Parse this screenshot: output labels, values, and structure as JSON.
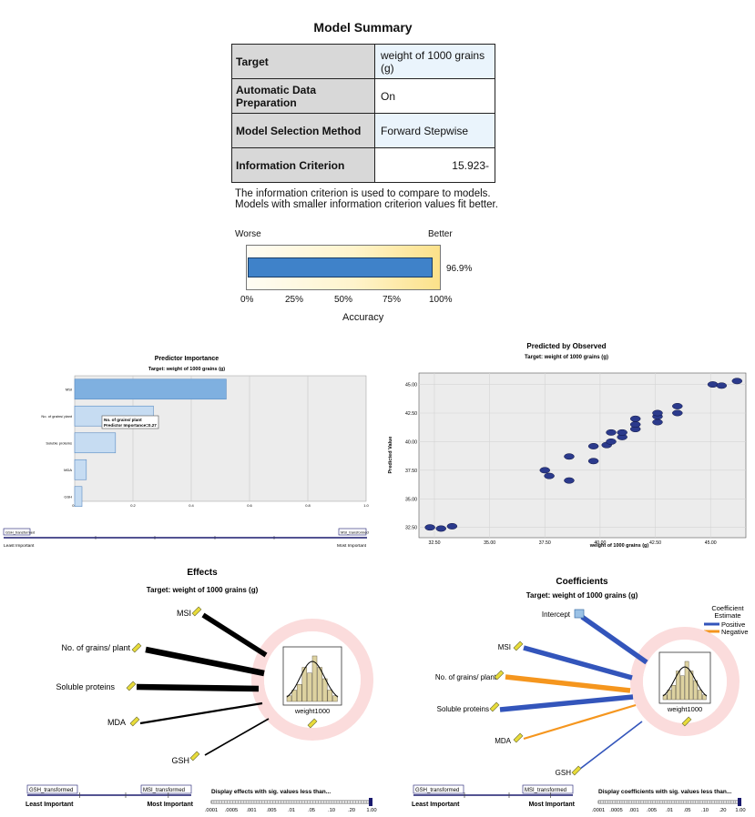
{
  "model_summary": {
    "title": "Model Summary",
    "rows": [
      {
        "key": "Target",
        "value": "weight of 1000 grains (g)"
      },
      {
        "key": "Automatic Data Preparation",
        "value": "On"
      },
      {
        "key": "Model Selection Method",
        "value": "Forward Stepwise"
      },
      {
        "key": "Information Criterion",
        "value": "15.923-"
      }
    ],
    "note_line1": "The information criterion is used to compare to models.",
    "note_line2": "Models with smaller information criterion values fit better.",
    "accuracy": {
      "worse_label": "Worse",
      "better_label": "Better",
      "value": 0.969,
      "value_label": "96.9%",
      "ticks": [
        "0%",
        "25%",
        "50%",
        "75%",
        "100%"
      ],
      "axis_label": "Accuracy",
      "colors": {
        "bar": "#3f82c9",
        "gradient_end": "#fce18a"
      }
    }
  },
  "chart_data": [
    {
      "type": "bar",
      "orientation": "horizontal",
      "title": "Predictor Importance",
      "subtitle": "Target: weight of 1000 grains (g)",
      "categories": [
        "MSI",
        "No. of grains/ plant",
        "Soluble proteins",
        "MDA",
        "GSH"
      ],
      "values": [
        0.52,
        0.27,
        0.14,
        0.04,
        0.025
      ],
      "xlim": [
        0,
        1.0
      ],
      "x_ticks": [
        "0.0",
        "0.2",
        "0.4",
        "0.6",
        "0.8",
        "1.0"
      ],
      "grid": true,
      "tooltip": {
        "line1": "No. of grains/ plant",
        "line2": "Predictor Importance=0.27"
      },
      "slider": {
        "left_tag": "GSH_transformed",
        "right_tag": "MSI_transformed",
        "left_label": "Least Important",
        "right_label": "Most Important"
      },
      "colors": {
        "bar": "#7fb0e0",
        "bar_light": "#c6dcf2",
        "plot_bg": "#ececec"
      }
    },
    {
      "type": "scatter",
      "title": "Predicted by Observed",
      "subtitle": "Target: weight of 1000 grains (g)",
      "xlabel": "weight of 1000 grains (g)",
      "ylabel": "Predicted Value",
      "xlim": [
        31.8,
        46.6
      ],
      "ylim": [
        31.6,
        46.0
      ],
      "x_ticks": [
        "32.50",
        "35.00",
        "37.50",
        "40.00",
        "42.50",
        "45.00"
      ],
      "y_ticks": [
        "32.50",
        "35.00",
        "37.50",
        "40.00",
        "42.50",
        "45.00"
      ],
      "points": [
        [
          32.3,
          32.5
        ],
        [
          32.8,
          32.4
        ],
        [
          33.3,
          32.6
        ],
        [
          37.5,
          37.5
        ],
        [
          37.7,
          37.0
        ],
        [
          38.6,
          36.6
        ],
        [
          38.6,
          38.7
        ],
        [
          39.7,
          38.3
        ],
        [
          39.7,
          39.6
        ],
        [
          40.3,
          39.7
        ],
        [
          40.5,
          40.0
        ],
        [
          40.5,
          40.8
        ],
        [
          41.0,
          40.4
        ],
        [
          41.0,
          40.8
        ],
        [
          41.6,
          41.1
        ],
        [
          41.6,
          41.5
        ],
        [
          41.6,
          42.0
        ],
        [
          42.6,
          41.7
        ],
        [
          42.6,
          42.2
        ],
        [
          42.6,
          42.5
        ],
        [
          43.5,
          42.5
        ],
        [
          43.5,
          43.1
        ],
        [
          45.1,
          45.0
        ],
        [
          45.5,
          44.9
        ],
        [
          46.2,
          45.3
        ]
      ],
      "grid": true,
      "colors": {
        "point": "#2b3a8c",
        "plot_bg": "#ececec"
      }
    },
    {
      "type": "diagram",
      "title": "Effects",
      "subtitle": "Target: weight of 1000 grains (g)",
      "target": "weight1000",
      "inputs": [
        {
          "name": "MSI",
          "weight": 5
        },
        {
          "name": "No. of grains/ plant",
          "weight": 6
        },
        {
          "name": "Soluble proteins",
          "weight": 6
        },
        {
          "name": "MDA",
          "weight": 2
        },
        {
          "name": "GSH",
          "weight": 1.5
        }
      ],
      "slider": {
        "left_tag": "GSH_transformed",
        "right_tag": "MSI_transformed",
        "left_label": "Least Important",
        "right_label": "Most Important"
      },
      "sig_label": "Display effects with sig. values less than...",
      "sig_ticks": [
        ".0001",
        ".0005",
        ".001",
        ".005",
        ".01",
        ".05",
        ".10",
        ".20",
        "1.00"
      ],
      "histogram": [
        1,
        2,
        3,
        6,
        5,
        8,
        6,
        4,
        2,
        1
      ]
    },
    {
      "type": "diagram",
      "title": "Coefficients",
      "subtitle": "Target: weight of 1000 grains (g)",
      "target": "weight1000",
      "legend_title_line1": "Coefficient",
      "legend_title_line2": "Estimate",
      "legend": [
        {
          "label": "Positive",
          "color": "#3355bb"
        },
        {
          "label": "Negative",
          "color": "#f5961e"
        }
      ],
      "inputs": [
        {
          "name": "Intercept",
          "sign": "positive",
          "weight": 5
        },
        {
          "name": "MSI",
          "sign": "positive",
          "weight": 5
        },
        {
          "name": "No. of grains/ plant",
          "sign": "negative",
          "weight": 5
        },
        {
          "name": "Soluble proteins",
          "sign": "positive",
          "weight": 5
        },
        {
          "name": "MDA",
          "sign": "negative",
          "weight": 2
        },
        {
          "name": "GSH",
          "sign": "positive",
          "weight": 1.5
        }
      ],
      "slider": {
        "left_tag": "GSH_transformed",
        "right_tag": "MSI_transformed",
        "left_label": "Least Important",
        "right_label": "Most Important"
      },
      "sig_label": "Display coefficients with sig. values less than...",
      "sig_ticks": [
        ".0001",
        ".0005",
        ".001",
        ".005",
        ".01",
        ".05",
        ".10",
        ".20",
        "1.00"
      ],
      "histogram": [
        1,
        2,
        3,
        6,
        5,
        8,
        6,
        4,
        2,
        1
      ]
    }
  ]
}
